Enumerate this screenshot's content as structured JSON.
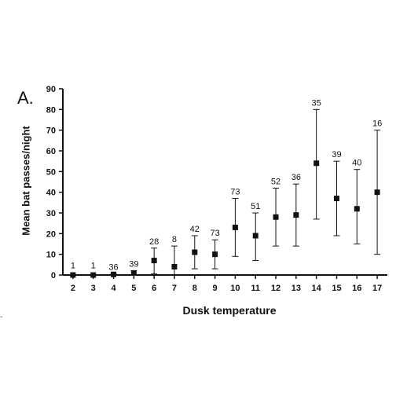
{
  "panel_label": "A.",
  "corner_mark": "-",
  "chart_data": {
    "type": "scatter",
    "title": "",
    "xlabel": "Dusk temperature",
    "ylabel": "Mean bat passes/night",
    "ylim": [
      0,
      90
    ],
    "y_ticks": [
      "0",
      "10",
      "20",
      "30",
      "40",
      "50",
      "60",
      "70",
      "80",
      "90"
    ],
    "x_ticks": [
      "2",
      "3",
      "4",
      "5",
      "6",
      "7",
      "8",
      "9",
      "10",
      "11",
      "12",
      "13",
      "14",
      "15",
      "16",
      "17"
    ],
    "grid": false,
    "legend": "none",
    "marker": "filled-square",
    "error_bars": true,
    "points": [
      {
        "x": 2,
        "y": 0,
        "low": 0,
        "high": 0,
        "n": "1"
      },
      {
        "x": 3,
        "y": 0,
        "low": 0,
        "high": 0,
        "n": "1"
      },
      {
        "x": 4,
        "y": 0.3,
        "low": 0,
        "high": 0.6,
        "n": "36"
      },
      {
        "x": 5,
        "y": 1,
        "low": 0,
        "high": 2,
        "n": "39"
      },
      {
        "x": 6,
        "y": 7,
        "low": 0.5,
        "high": 13,
        "n": "28"
      },
      {
        "x": 7,
        "y": 4,
        "low": 0,
        "high": 14,
        "n": "8"
      },
      {
        "x": 8,
        "y": 11,
        "low": 3,
        "high": 19,
        "n": "42"
      },
      {
        "x": 9,
        "y": 10,
        "low": 3,
        "high": 17,
        "n": "73"
      },
      {
        "x": 10,
        "y": 23,
        "low": 9,
        "high": 37,
        "n": "73"
      },
      {
        "x": 11,
        "y": 19,
        "low": 7,
        "high": 30,
        "n": "51"
      },
      {
        "x": 12,
        "y": 28,
        "low": 14,
        "high": 42,
        "n": "52"
      },
      {
        "x": 13,
        "y": 29,
        "low": 14,
        "high": 44,
        "n": "36"
      },
      {
        "x": 14,
        "y": 54,
        "low": 27,
        "high": 80,
        "n": "35"
      },
      {
        "x": 15,
        "y": 37,
        "low": 19,
        "high": 55,
        "n": "39"
      },
      {
        "x": 16,
        "y": 32,
        "low": 15,
        "high": 51,
        "n": "40"
      },
      {
        "x": 17,
        "y": 40,
        "low": 10,
        "high": 70,
        "n": "16"
      }
    ],
    "colors": {
      "marker": "#111111",
      "axis": "#111111",
      "text": "#111111"
    }
  }
}
